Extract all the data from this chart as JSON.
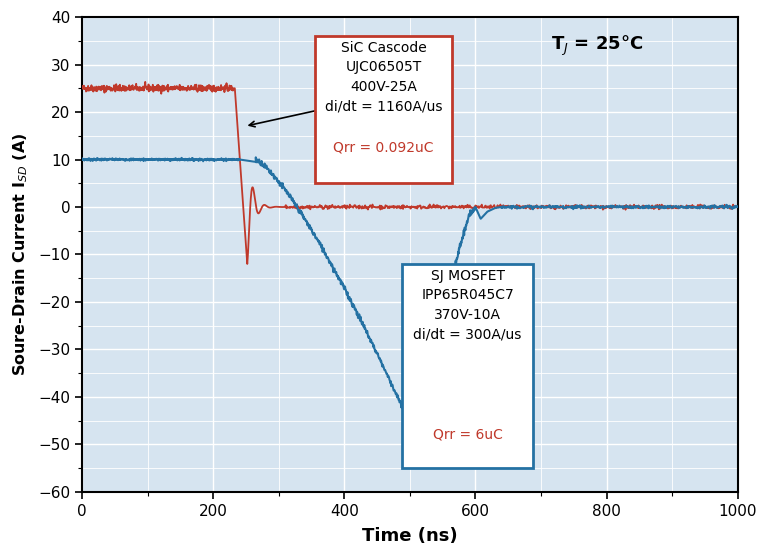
{
  "xlabel": "Time (ns)",
  "ylabel": "Soure-Drain Current I$_{SD}$ (A)",
  "xlim": [
    0,
    1000
  ],
  "ylim": [
    -60,
    40
  ],
  "yticks": [
    -60,
    -50,
    -40,
    -30,
    -20,
    -10,
    0,
    10,
    20,
    30,
    40
  ],
  "xticks": [
    0,
    200,
    400,
    600,
    800,
    1000
  ],
  "bg_color": "#d6e4f0",
  "grid_color": "white",
  "red_color": "#c0392b",
  "blue_color": "#2471a3",
  "sic_box_lines": [
    "SiC Cascode",
    "UJC06505T",
    "400V-25A",
    "di/dt = 1160A/us"
  ],
  "sic_box_red": "Qrr = 0.092uC",
  "mosfet_box_lines": [
    "SJ MOSFET",
    "IPP65R045C7",
    "370V-10A",
    "di/dt = 300A/us"
  ],
  "mosfet_box_red": "Qrr = 6uC",
  "temp_label": "T$_J$ = 25°C"
}
